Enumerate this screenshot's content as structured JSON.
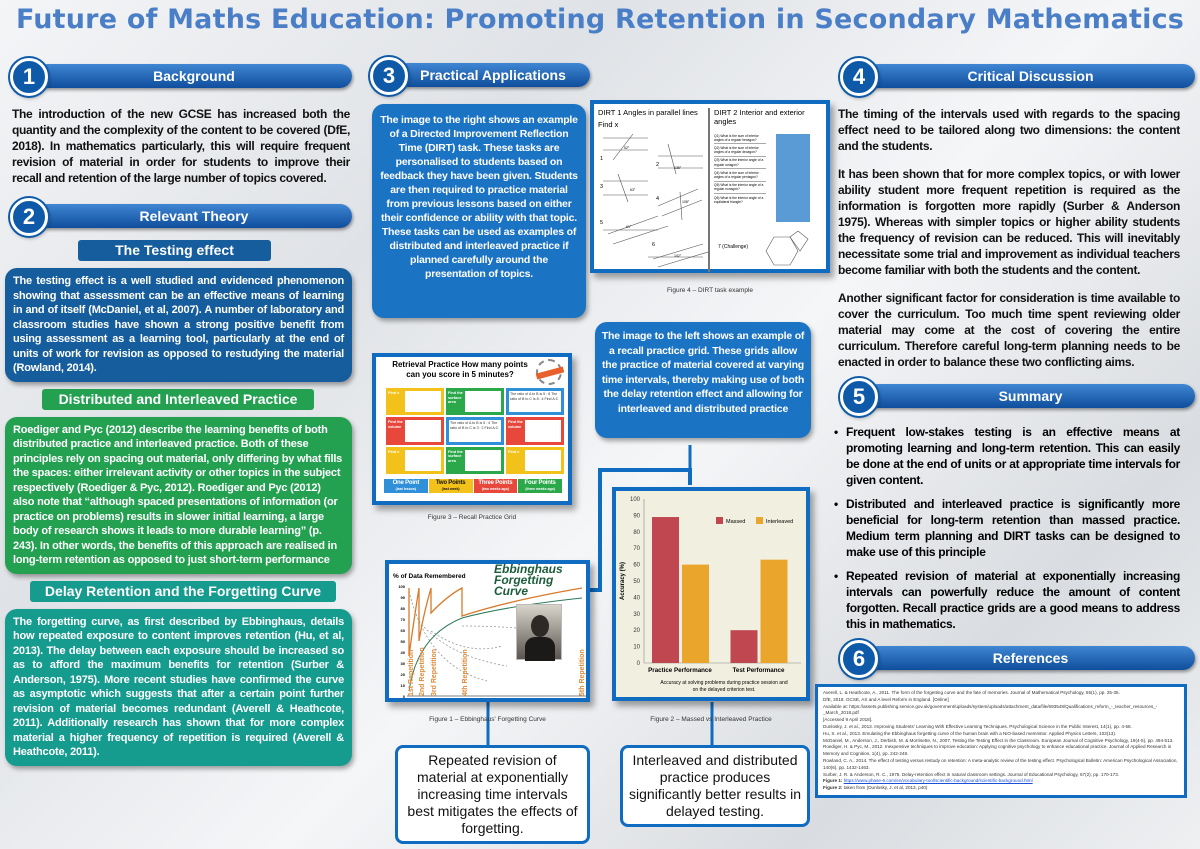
{
  "title": "Future of Maths Education: Promoting Retention in Secondary Mathematics",
  "sections": {
    "s1": {
      "num": "1",
      "label": "Background"
    },
    "s2": {
      "num": "2",
      "label": "Relevant Theory"
    },
    "s3": {
      "num": "3",
      "label": "Practical Applications"
    },
    "s4": {
      "num": "4",
      "label": "Critical Discussion"
    },
    "s5": {
      "num": "5",
      "label": "Summary"
    },
    "s6": {
      "num": "6",
      "label": "References"
    }
  },
  "background_text": "The introduction of the new GCSE has increased both the quantity and the complexity of the content to be covered (DfE, 2018). In mathematics particularly, this will require frequent revision of material in order for students to improve their recall and retention of the large number of topics covered.",
  "theory": {
    "testing_title": "The Testing effect",
    "testing_text": "The testing effect is a well studied and evidenced phenomenon showing that assessment can be an effective means of learning in and of itself (McDaniel, et al, 2007). A number of laboratory and classroom studies have shown a strong positive benefit from using assessment as a learning tool, particularly at the end of units of work for revision as opposed to restudying the material (Rowland, 2014).",
    "distributed_title": "Distributed and Interleaved Practice",
    "distributed_text": "Roediger and Pyc (2012) describe the learning benefits of both distributed practice and interleaved practice. Both of these principles rely on spacing out material, only differing by what fills the spaces: either irrelevant activity or other topics in the subject respectively (Roediger & Pyc, 2012). Roediger and Pyc (2012) also note that “although spaced presentations of information (or practice on problems) results in slower initial learning, a large body of research shows it leads to more durable learning” (p. 243). In other words, the benefits of this approach are realised in long-term retention as opposed to just short-term performance",
    "delay_title": "Delay Retention and the Forgetting Curve",
    "delay_text": "The forgetting curve, as first described by Ebbinghaus, details how repeated exposure to content improves retention (Hu, et al, 2013). The delay between each exposure should be increased so as to afford the maximum benefits for retention (Surber & Anderson, 1975). More recent studies have confirmed the curve as asymptotic which suggests that after a certain point further revision of material becomes redundant (Averell & Heathcote, 2011). Additionally research has shown that for more complex material a higher frequency of repetition is required (Averell & Heathcote, 2011)."
  },
  "practical": {
    "dirt_text": "The image to the right shows an example of a Directed Improvement Reflection Time (DIRT) task. These tasks are personalised to students based on feedback they have been given. Students are then required to practice material from previous lessons based on either their confidence or ability with that topic. These tasks can be used as examples of distributed and interleaved practice if planned carefully around the presentation of topics.",
    "recall_text": "The image to the left shows an example of a recall practice grid. These grids allow the practice of material covered at varying time intervals, thereby making use of both the delay retention effect and allowing for interleaved and distributed practice",
    "dirt_figure": {
      "dirt1_title": "DIRT 1 Angles in parallel lines",
      "find": "Find x",
      "items": [
        "1",
        "2",
        "3",
        "4",
        "5",
        "6"
      ],
      "angles": [
        "52°",
        "135°",
        "63°",
        "108°",
        "61°",
        "102°"
      ],
      "dirt2_title": "DIRT 2 Interior and exterior angles",
      "questions": [
        "Q1) What is the sum of interior angles of a regular hexagon?",
        "Q2) What is the sum of interior angles of a regular decagon?",
        "Q3) What is the interior angle of a regular octagon?",
        "Q4) What is the sum of interior angles of a regular pentagon?",
        "Q5) What is the interior angle of a regular nonagon?",
        "Q6) What is the interior angle of a equilateral triangle?"
      ],
      "challenge": "7 (Challenge)",
      "caption": "Figure 4 – DIRT task example"
    },
    "grid_figure": {
      "title": "Retrieval Practice How many points can you score in 5 minutes?",
      "cells": [
        {
          "text": "Find x",
          "color": "#f2c21b"
        },
        {
          "text": "Find the surface area",
          "color": "#2aa84a"
        },
        {
          "text": "The ratio of A to B is 5 : 8 The ratio of B to C is 8 : 4 Find A:C",
          "color": "#2f8fd8"
        },
        {
          "text": "Find the volume",
          "color": "#e8473c"
        },
        {
          "text": "The ratio of A to B is 5 : 4 The ratio of B to C is 3 : 2 Find A:C",
          "color": "#2f8fd8"
        },
        {
          "text": "Find the volume",
          "color": "#e8473c"
        },
        {
          "text": "Find x",
          "color": "#f2c21b"
        },
        {
          "text": "Find the surface area",
          "color": "#2aa84a"
        },
        {
          "text": "Find x",
          "color": "#f2c21b"
        }
      ],
      "points": [
        {
          "label": "One Point",
          "sub": "(last lesson)",
          "color": "#2f8fd8"
        },
        {
          "label": "Two Points",
          "sub": "(last week)",
          "color": "#f2c21b"
        },
        {
          "label": "Three Points",
          "sub": "(two weeks ago)",
          "color": "#e8473c"
        },
        {
          "label": "Four Points",
          "sub": "(three weeks ago)",
          "color": "#2aa84a"
        }
      ],
      "caption": "Figure 3 – Recall Practice Grid"
    },
    "forgetting_figure": {
      "title": "Ebbinghaus Forgetting Curve",
      "ylabel": "% of Data Remembered",
      "yticks": [
        "100",
        "90",
        "80",
        "70",
        "60",
        "50",
        "40",
        "30",
        "20",
        "10",
        "0"
      ],
      "repetitions": [
        "1st Repetition",
        "2nd Repetition",
        "3rd Repetition",
        "4th Repetition",
        "5th Repetition"
      ],
      "caption": "Figure 1 – Ebbinghaus' Forgetting Curve"
    },
    "callout_left": "Repeated revision of material at exponentially increasing time intervals best mitigates the effects of forgetting.",
    "callout_right": "Interleaved and distributed practice produces significantly better results in delayed testing."
  },
  "chart_data": {
    "type": "bar",
    "categories": [
      "Practice Performance",
      "Test Performance"
    ],
    "series": [
      {
        "name": "Massed",
        "values": [
          89,
          20
        ],
        "color": "#c0474f"
      },
      {
        "name": "Interleaved",
        "values": [
          60,
          63
        ],
        "color": "#e9a52c"
      }
    ],
    "ylabel": "Accuracy (%)",
    "ylim": [
      0,
      100
    ],
    "yticks": [
      0,
      10,
      20,
      30,
      40,
      50,
      60,
      70,
      80,
      90,
      100
    ],
    "subtitle": "Accuracy at solving problems during practice session and on the delayed criterion test.",
    "legend": "top-right",
    "caption": "Figure 2 – Massed vs Interleaved Practice"
  },
  "discussion": [
    "The timing of the intervals used with regards to the spacing effect need to be tailored along two dimensions: the content and the students.",
    "It has been shown that for more complex topics, or with lower ability student more frequent repetition is required as the information is forgotten more rapidly (Surber & Anderson 1975). Whereas with simpler topics or higher ability students the frequency of revision can be reduced. This will inevitably necessitate some trial and improvement as individual teachers become familiar with both the students and the content.",
    "Another significant factor for consideration is time available to cover the curriculum. Too much time spent reviewing older material may come at the cost of covering the entire curriculum. Therefore careful long-term planning needs to be enacted in order to balance these two conflicting aims."
  ],
  "summary": [
    "Frequent low-stakes testing is an effective means at promoting learning and long-term retention. This can easily be done at the end of units or at appropriate time intervals for given content.",
    "Distributed and interleaved practice is significantly more beneficial for long-term retention than massed practice. Medium term planning and DIRT tasks can be designed to make use of this principle",
    "Repeated revision of material at exponentially increasing intervals can powerfully reduce the amount of content forgotten. Recall practice grids are a good means to address this in mathematics."
  ],
  "references": [
    "Averell, L. & Heathcote, A., 2011. The form of the forgetting curve and the fate of memories. Journal of Mathematical Psychology, 55(1), pp. 25-35.",
    "DfE, 2018. GCSE, AS and A level Reform in England. [Online]",
    "Available at: https://assets.publishing.service.gov.uk/government/uploads/system/uploads/attachment_data/file/693548/Qualifications_reform_-_teacher_resources_-_March_2018.pdf",
    "[Accessed 9 April 2018].",
    "Dunlosky, J. et al., 2013. Improving Students' Learning With Effective Learning Techniques. Psychological Science in the Public Interest, 14(1), pp. 4-58.",
    "Hu, S. et al., 2013. Emulating the Ebbinghaus forgetting curve of the human brain with a NiO-based memristor. Applied Physics Letters, 103(13).",
    "McDaniel, M., Anderson, J., Derbish, M. & Morrisette, N., 2007. Testing the Testing Effect in the Classroom. European Journal of Cognitive Psychology, 19(4-5), pp. 494-513.",
    "Roediger, H. & Pyc, M., 2012. Inexpensive techniques to improve education: Applying cognitive psychology to enhance educational practice. Journal of Applied Research in Memory and Cognition, 1(4), pp. 242-248.",
    "Rowland, C. A., 2014. The effect of testing versus restudy on retention: A meta-analytic review of the testing effect. Psychological Bulletin: American Psychological Association, 140(6), pp. 1432-1463.",
    "Surber, J. R. & Anderson, R. C., 1975. Delay-retention effect in natural classroom settings. Journal of Educational Psychology, 67(2), pp. 170-173."
  ],
  "figure_refs": [
    {
      "label": "Figure 1:",
      "text": "https://www.phase-6.com/en/vocabulary-tool/scientific-background/scientific-background.html"
    },
    {
      "label": "Figure 2:",
      "text": "taken from (Dunlosky, J. et al, 2013, p40)"
    }
  ]
}
